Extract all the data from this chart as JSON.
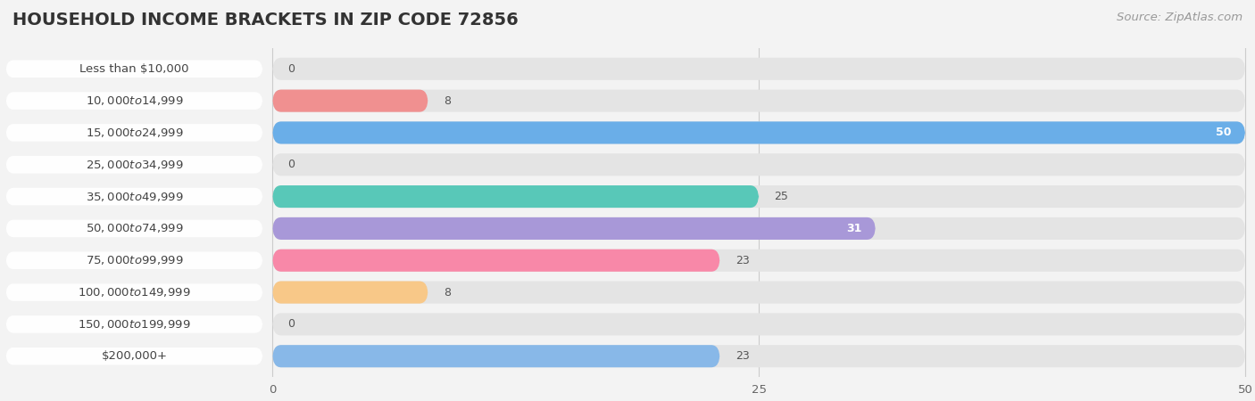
{
  "title": "HOUSEHOLD INCOME BRACKETS IN ZIP CODE 72856",
  "source": "Source: ZipAtlas.com",
  "categories": [
    "Less than $10,000",
    "$10,000 to $14,999",
    "$15,000 to $24,999",
    "$25,000 to $34,999",
    "$35,000 to $49,999",
    "$50,000 to $74,999",
    "$75,000 to $99,999",
    "$100,000 to $149,999",
    "$150,000 to $199,999",
    "$200,000+"
  ],
  "values": [
    0,
    8,
    50,
    0,
    25,
    31,
    23,
    8,
    0,
    23
  ],
  "colors": [
    "#F5C49C",
    "#F09090",
    "#6AAEE8",
    "#C8A8D8",
    "#58C8B8",
    "#A898D8",
    "#F888A8",
    "#F8C888",
    "#F0A8A8",
    "#88B8E8"
  ],
  "xlim": [
    0,
    50
  ],
  "xticks": [
    0,
    25,
    50
  ],
  "background_color": "#f3f3f3",
  "bar_bg_color": "#e4e4e4",
  "row_bg_color": "#ebebeb",
  "title_fontsize": 14,
  "label_fontsize": 9.5,
  "value_fontsize": 9,
  "source_fontsize": 9.5,
  "value_label_positions": [
    {
      "inside": false,
      "white": false
    },
    {
      "inside": false,
      "white": false
    },
    {
      "inside": true,
      "white": true
    },
    {
      "inside": false,
      "white": false
    },
    {
      "inside": false,
      "white": false
    },
    {
      "inside": true,
      "white": true
    },
    {
      "inside": false,
      "white": false
    },
    {
      "inside": false,
      "white": false
    },
    {
      "inside": false,
      "white": false
    },
    {
      "inside": false,
      "white": false
    }
  ]
}
